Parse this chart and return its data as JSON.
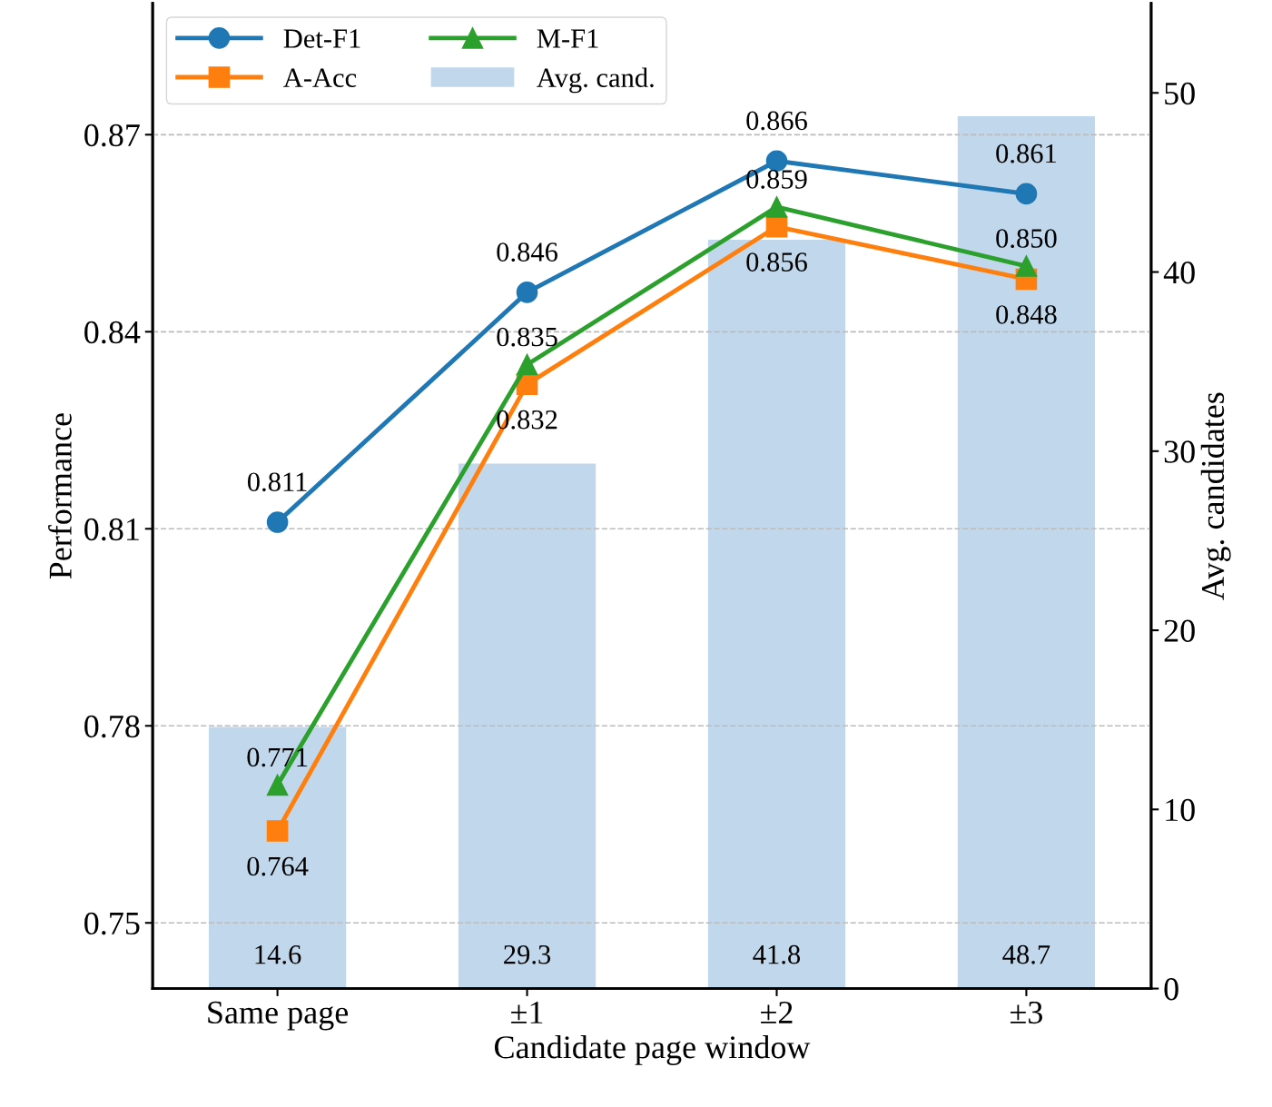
{
  "chart_data": {
    "type": "line",
    "xlabel": "Candidate page window",
    "ylabel": "Performance",
    "y2label": "Avg. candidates",
    "categories": [
      "Same page",
      "±1",
      "±2",
      "±3"
    ],
    "series": [
      {
        "name": "Det-F1",
        "color": "#1f77b4",
        "marker": "circle",
        "values": [
          0.811,
          0.846,
          0.866,
          0.861
        ],
        "value_labels": [
          "0.811",
          "0.846",
          "0.866",
          "0.861"
        ]
      },
      {
        "name": "A-Acc",
        "color": "#ff7f0e",
        "marker": "square",
        "values": [
          0.764,
          0.832,
          0.856,
          0.848
        ],
        "value_labels": [
          "0.764",
          "0.832",
          "0.856",
          "0.848"
        ]
      },
      {
        "name": "M-F1",
        "color": "#2ca02c",
        "marker": "triangle",
        "values": [
          0.771,
          0.835,
          0.859,
          0.85
        ],
        "value_labels": [
          "0.771",
          "0.835",
          "0.859",
          "0.850"
        ]
      },
      {
        "name": "Avg. cand.",
        "type": "bar",
        "axis": "y2",
        "color": "#c1d8ec",
        "values": [
          14.6,
          29.3,
          41.8,
          48.7
        ],
        "value_labels": [
          "14.6",
          "29.3",
          "41.8",
          "48.7"
        ]
      }
    ],
    "ylim": [
      0.74,
      0.89
    ],
    "yticks": [
      0.75,
      0.78,
      0.81,
      0.84,
      0.87
    ],
    "y2lim": [
      0,
      55
    ],
    "y2ticks": [
      0,
      10,
      20,
      30,
      40,
      50
    ],
    "grid": "y",
    "legend": "top left",
    "line_style": "solid"
  }
}
